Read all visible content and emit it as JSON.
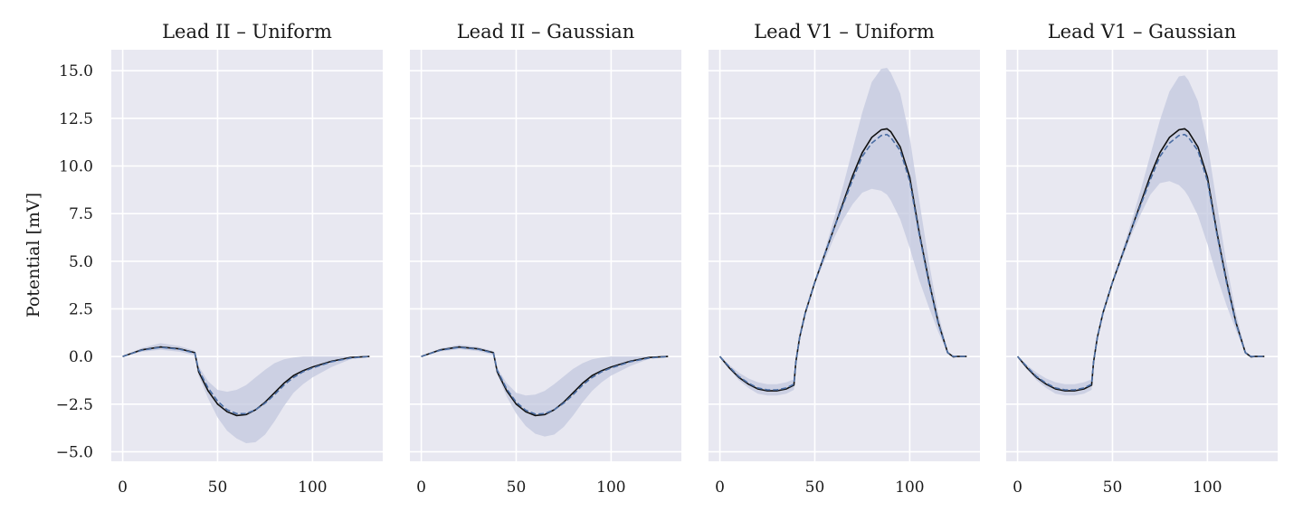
{
  "chart_data": [
    {
      "type": "line",
      "title": "Lead II – Uniform",
      "ylabel": "Potential [mV]",
      "xlim": [
        -6,
        137
      ],
      "ylim": [
        -5.5,
        16.1
      ],
      "xticks": [
        0,
        50,
        100
      ],
      "yticks": [
        -5.0,
        -2.5,
        0.0,
        2.5,
        5.0,
        7.5,
        10.0,
        12.5,
        15.0
      ],
      "ytick_labels": [
        "−5.0",
        "−2.5",
        "0.0",
        "2.5",
        "5.0",
        "7.5",
        "10.0",
        "12.5",
        "15.0"
      ],
      "grid": true,
      "x": [
        0,
        10,
        20,
        30,
        38,
        40,
        45,
        50,
        55,
        60,
        65,
        70,
        75,
        80,
        85,
        90,
        95,
        100,
        110,
        120,
        130
      ],
      "series": [
        {
          "role": "truth",
          "values": [
            0.0,
            0.35,
            0.5,
            0.4,
            0.2,
            -0.8,
            -1.8,
            -2.5,
            -2.9,
            -3.1,
            -3.05,
            -2.8,
            -2.4,
            -1.9,
            -1.4,
            -1.0,
            -0.75,
            -0.55,
            -0.25,
            -0.05,
            0.0
          ]
        },
        {
          "role": "mean",
          "values": [
            0.0,
            0.33,
            0.48,
            0.38,
            0.18,
            -0.7,
            -1.65,
            -2.35,
            -2.8,
            -3.0,
            -3.0,
            -2.8,
            -2.45,
            -2.0,
            -1.5,
            -1.1,
            -0.8,
            -0.6,
            -0.28,
            -0.08,
            0.0
          ]
        },
        {
          "role": "band_upper",
          "values": [
            0.0,
            0.45,
            0.7,
            0.55,
            0.3,
            -0.5,
            -1.3,
            -1.75,
            -1.85,
            -1.75,
            -1.5,
            -1.1,
            -0.7,
            -0.35,
            -0.15,
            -0.05,
            0.0,
            0.0,
            0.0,
            0.0,
            0.0
          ]
        },
        {
          "role": "band_lower",
          "values": [
            0.0,
            0.25,
            0.35,
            0.25,
            0.05,
            -1.0,
            -2.2,
            -3.2,
            -3.9,
            -4.3,
            -4.55,
            -4.5,
            -4.1,
            -3.4,
            -2.6,
            -1.9,
            -1.45,
            -1.1,
            -0.55,
            -0.15,
            0.0
          ]
        }
      ]
    },
    {
      "type": "line",
      "title": "Lead II – Gaussian",
      "xlim": [
        -6,
        137
      ],
      "ylim": [
        -5.5,
        16.1
      ],
      "xticks": [
        0,
        50,
        100
      ],
      "grid": true,
      "x": [
        0,
        10,
        20,
        30,
        38,
        40,
        45,
        50,
        55,
        60,
        65,
        70,
        75,
        80,
        85,
        90,
        95,
        100,
        110,
        120,
        130
      ],
      "series": [
        {
          "role": "truth",
          "values": [
            0.0,
            0.35,
            0.5,
            0.4,
            0.2,
            -0.8,
            -1.8,
            -2.5,
            -2.9,
            -3.1,
            -3.05,
            -2.8,
            -2.4,
            -1.9,
            -1.4,
            -1.0,
            -0.75,
            -0.55,
            -0.25,
            -0.05,
            0.0
          ]
        },
        {
          "role": "mean",
          "values": [
            0.0,
            0.33,
            0.48,
            0.38,
            0.18,
            -0.72,
            -1.7,
            -2.4,
            -2.82,
            -3.02,
            -3.0,
            -2.8,
            -2.45,
            -2.0,
            -1.5,
            -1.1,
            -0.8,
            -0.6,
            -0.28,
            -0.08,
            0.0
          ]
        },
        {
          "role": "band_upper",
          "values": [
            0.0,
            0.42,
            0.62,
            0.5,
            0.28,
            -0.6,
            -1.4,
            -1.9,
            -2.05,
            -2.0,
            -1.8,
            -1.45,
            -1.05,
            -0.65,
            -0.35,
            -0.15,
            -0.05,
            0.0,
            0.0,
            0.0,
            0.0
          ]
        },
        {
          "role": "band_lower",
          "values": [
            0.0,
            0.27,
            0.38,
            0.28,
            0.08,
            -0.95,
            -2.1,
            -3.0,
            -3.65,
            -4.05,
            -4.2,
            -4.1,
            -3.7,
            -3.1,
            -2.4,
            -1.8,
            -1.35,
            -1.0,
            -0.5,
            -0.12,
            0.0
          ]
        }
      ]
    },
    {
      "type": "line",
      "title": "Lead V1 – Uniform",
      "xlim": [
        -6,
        137
      ],
      "ylim": [
        -5.5,
        16.1
      ],
      "xticks": [
        0,
        50,
        100
      ],
      "grid": true,
      "x": [
        0,
        5,
        10,
        15,
        20,
        25,
        30,
        35,
        39,
        40,
        42,
        45,
        50,
        55,
        60,
        65,
        70,
        75,
        80,
        85,
        88,
        90,
        95,
        100,
        105,
        110,
        115,
        120,
        123,
        125,
        130
      ],
      "series": [
        {
          "role": "truth",
          "values": [
            0.0,
            -0.6,
            -1.1,
            -1.45,
            -1.7,
            -1.8,
            -1.8,
            -1.7,
            -1.5,
            -0.3,
            1.0,
            2.3,
            3.9,
            5.3,
            6.7,
            8.1,
            9.5,
            10.7,
            11.5,
            11.9,
            11.95,
            11.8,
            11.0,
            9.4,
            6.5,
            4.0,
            1.8,
            0.2,
            -0.02,
            0.0,
            0.0
          ]
        },
        {
          "role": "mean",
          "values": [
            0.0,
            -0.55,
            -1.05,
            -1.4,
            -1.65,
            -1.75,
            -1.75,
            -1.65,
            -1.45,
            -0.3,
            1.0,
            2.3,
            3.9,
            5.3,
            6.7,
            8.0,
            9.3,
            10.5,
            11.2,
            11.6,
            11.65,
            11.5,
            10.8,
            9.2,
            6.4,
            3.9,
            1.75,
            0.2,
            0.0,
            0.0,
            0.0
          ]
        },
        {
          "role": "band_upper",
          "values": [
            0.0,
            -0.45,
            -0.85,
            -1.15,
            -1.35,
            -1.45,
            -1.45,
            -1.35,
            -1.2,
            -0.2,
            1.1,
            2.4,
            4.0,
            5.5,
            7.2,
            9.0,
            10.9,
            12.8,
            14.4,
            15.1,
            15.15,
            14.9,
            13.8,
            11.5,
            8.2,
            5.0,
            2.3,
            0.3,
            0.0,
            0.0,
            0.0
          ]
        },
        {
          "role": "band_lower",
          "values": [
            0.0,
            -0.65,
            -1.25,
            -1.65,
            -1.95,
            -2.05,
            -2.05,
            -1.95,
            -1.75,
            -0.4,
            0.9,
            2.2,
            3.8,
            5.0,
            6.2,
            7.2,
            8.0,
            8.6,
            8.8,
            8.7,
            8.5,
            8.2,
            7.2,
            5.7,
            4.0,
            2.6,
            1.3,
            0.2,
            0.0,
            0.0,
            0.0
          ]
        }
      ]
    },
    {
      "type": "line",
      "title": "Lead V1 – Gaussian",
      "xlim": [
        -6,
        137
      ],
      "ylim": [
        -5.5,
        16.1
      ],
      "xticks": [
        0,
        50,
        100
      ],
      "grid": true,
      "x": [
        0,
        5,
        10,
        15,
        20,
        25,
        30,
        35,
        39,
        40,
        42,
        45,
        50,
        55,
        60,
        65,
        70,
        75,
        80,
        85,
        88,
        90,
        95,
        100,
        105,
        110,
        115,
        120,
        123,
        125,
        130
      ],
      "series": [
        {
          "role": "truth",
          "values": [
            0.0,
            -0.6,
            -1.1,
            -1.45,
            -1.7,
            -1.8,
            -1.8,
            -1.7,
            -1.5,
            -0.3,
            1.0,
            2.3,
            3.9,
            5.3,
            6.7,
            8.1,
            9.5,
            10.7,
            11.5,
            11.9,
            11.95,
            11.8,
            11.0,
            9.4,
            6.5,
            4.0,
            1.8,
            0.2,
            -0.02,
            0.0,
            0.0
          ]
        },
        {
          "role": "mean",
          "values": [
            0.0,
            -0.55,
            -1.05,
            -1.4,
            -1.65,
            -1.75,
            -1.75,
            -1.65,
            -1.45,
            -0.3,
            1.0,
            2.3,
            3.9,
            5.3,
            6.7,
            8.0,
            9.3,
            10.5,
            11.2,
            11.6,
            11.65,
            11.5,
            10.8,
            9.2,
            6.4,
            3.9,
            1.75,
            0.2,
            0.0,
            0.0,
            0.0
          ]
        },
        {
          "role": "band_upper",
          "values": [
            0.0,
            -0.45,
            -0.85,
            -1.15,
            -1.35,
            -1.45,
            -1.45,
            -1.35,
            -1.2,
            -0.2,
            1.1,
            2.4,
            4.0,
            5.5,
            7.1,
            8.8,
            10.6,
            12.4,
            13.9,
            14.7,
            14.75,
            14.5,
            13.4,
            11.2,
            8.0,
            4.9,
            2.3,
            0.3,
            0.0,
            0.0,
            0.0
          ]
        },
        {
          "role": "band_lower",
          "values": [
            0.0,
            -0.65,
            -1.25,
            -1.65,
            -1.95,
            -2.05,
            -2.05,
            -1.95,
            -1.75,
            -0.4,
            0.9,
            2.2,
            3.8,
            5.1,
            6.4,
            7.5,
            8.5,
            9.1,
            9.2,
            9.0,
            8.7,
            8.4,
            7.4,
            5.9,
            4.2,
            2.7,
            1.4,
            0.2,
            0.0,
            0.0,
            0.0
          ]
        }
      ]
    }
  ]
}
